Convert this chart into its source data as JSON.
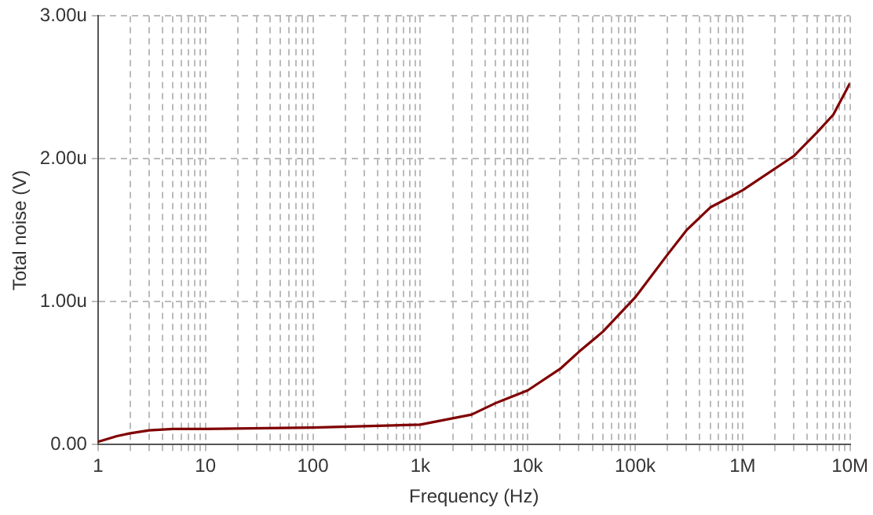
{
  "chart_data": {
    "type": "line",
    "xlabel": "Frequency (Hz)",
    "ylabel": "Total noise (V)",
    "log": "x",
    "grid": true,
    "marker": "none",
    "line_style": "solid",
    "legend": false,
    "xlim": [
      1,
      10000000
    ],
    "ylim": [
      0,
      3
    ],
    "xticks": [
      {
        "value": 1,
        "label": "1"
      },
      {
        "value": 2,
        "label": null
      },
      {
        "value": 3,
        "label": null
      },
      {
        "value": 4,
        "label": null
      },
      {
        "value": 5,
        "label": null
      },
      {
        "value": 6,
        "label": null
      },
      {
        "value": 7,
        "label": null
      },
      {
        "value": 8,
        "label": null
      },
      {
        "value": 9,
        "label": null
      },
      {
        "value": 10,
        "label": "10"
      },
      {
        "value": 20,
        "label": null
      },
      {
        "value": 30,
        "label": null
      },
      {
        "value": 40,
        "label": null
      },
      {
        "value": 50,
        "label": null
      },
      {
        "value": 60,
        "label": null
      },
      {
        "value": 70,
        "label": null
      },
      {
        "value": 80,
        "label": null
      },
      {
        "value": 90,
        "label": null
      },
      {
        "value": 100,
        "label": "100"
      },
      {
        "value": 200,
        "label": null
      },
      {
        "value": 300,
        "label": null
      },
      {
        "value": 400,
        "label": null
      },
      {
        "value": 500,
        "label": null
      },
      {
        "value": 600,
        "label": null
      },
      {
        "value": 700,
        "label": null
      },
      {
        "value": 800,
        "label": null
      },
      {
        "value": 900,
        "label": null
      },
      {
        "value": 1000,
        "label": "1k"
      },
      {
        "value": 2000,
        "label": null
      },
      {
        "value": 3000,
        "label": null
      },
      {
        "value": 4000,
        "label": null
      },
      {
        "value": 5000,
        "label": null
      },
      {
        "value": 6000,
        "label": null
      },
      {
        "value": 7000,
        "label": null
      },
      {
        "value": 8000,
        "label": null
      },
      {
        "value": 9000,
        "label": null
      },
      {
        "value": 10000,
        "label": "10k"
      },
      {
        "value": 20000,
        "label": null
      },
      {
        "value": 30000,
        "label": null
      },
      {
        "value": 40000,
        "label": null
      },
      {
        "value": 50000,
        "label": null
      },
      {
        "value": 60000,
        "label": null
      },
      {
        "value": 70000,
        "label": null
      },
      {
        "value": 80000,
        "label": null
      },
      {
        "value": 90000,
        "label": null
      },
      {
        "value": 100000,
        "label": "100k"
      },
      {
        "value": 200000,
        "label": null
      },
      {
        "value": 300000,
        "label": null
      },
      {
        "value": 400000,
        "label": null
      },
      {
        "value": 500000,
        "label": null
      },
      {
        "value": 600000,
        "label": null
      },
      {
        "value": 700000,
        "label": null
      },
      {
        "value": 800000,
        "label": null
      },
      {
        "value": 900000,
        "label": null
      },
      {
        "value": 1000000,
        "label": "1M"
      },
      {
        "value": 2000000,
        "label": null
      },
      {
        "value": 3000000,
        "label": null
      },
      {
        "value": 4000000,
        "label": null
      },
      {
        "value": 5000000,
        "label": null
      },
      {
        "value": 6000000,
        "label": null
      },
      {
        "value": 7000000,
        "label": null
      },
      {
        "value": 8000000,
        "label": null
      },
      {
        "value": 9000000,
        "label": null
      },
      {
        "value": 10000000,
        "label": "10M"
      }
    ],
    "yticks": [
      {
        "value": 0,
        "label": "0.00"
      },
      {
        "value": 1,
        "label": "1.00u"
      },
      {
        "value": 2,
        "label": "2.00u"
      },
      {
        "value": 3,
        "label": "3.00u"
      }
    ],
    "x": [
      1,
      1.5,
      2,
      3,
      5,
      10,
      100,
      1000,
      3000,
      5000,
      10000,
      20000,
      30000,
      50000,
      100000,
      200000,
      300000,
      500000,
      1000000,
      3000000,
      5000000,
      7000000,
      10000000
    ],
    "series": [
      {
        "color": "#800000",
        "values": [
          0.02,
          0.06,
          0.08,
          0.1,
          0.11,
          0.11,
          0.12,
          0.14,
          0.21,
          0.29,
          0.38,
          0.53,
          0.65,
          0.79,
          1.03,
          1.33,
          1.5,
          1.66,
          1.78,
          2.02,
          2.19,
          2.31,
          2.53
        ]
      }
    ]
  }
}
